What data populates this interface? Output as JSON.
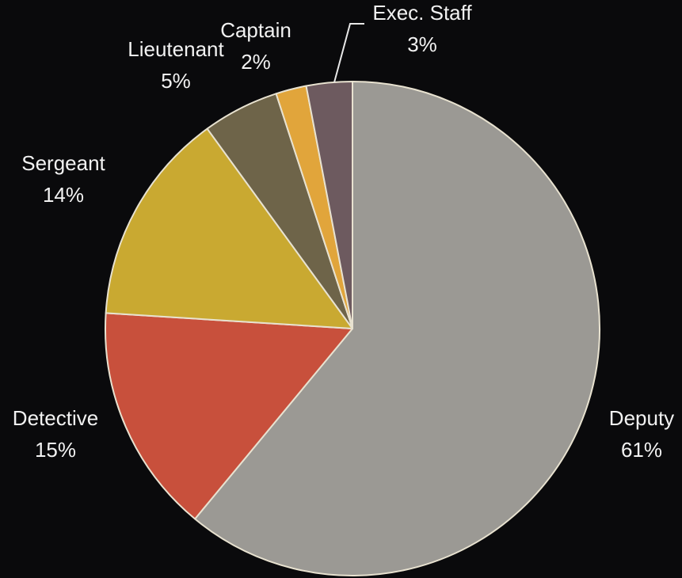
{
  "chart_data": {
    "type": "pie",
    "categories": [
      "Deputy",
      "Detective",
      "Sergeant",
      "Lieutenant",
      "Captain",
      "Exec. Staff"
    ],
    "values": [
      61,
      15,
      14,
      5,
      2,
      3
    ],
    "value_labels": [
      "61%",
      "15%",
      "14%",
      "5%",
      "2%",
      "3%"
    ],
    "colors": [
      "#9b9994",
      "#c8503c",
      "#c9a931",
      "#6e6449",
      "#e1a53b",
      "#6d5a5f"
    ]
  }
}
